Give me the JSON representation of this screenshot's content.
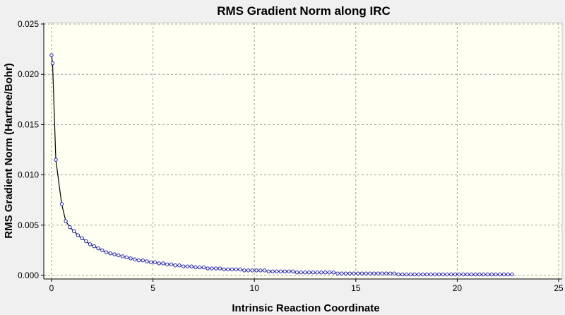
{
  "chart_data": {
    "type": "line",
    "title": "RMS Gradient Norm along IRC",
    "xlabel": "Intrinsic Reaction Coordinate",
    "ylabel": "RMS Gradient Norm (Hartree/Bohr)",
    "xlim": [
      0,
      25
    ],
    "ylim": [
      0,
      0.025
    ],
    "xticks": [
      0,
      5,
      10,
      15,
      20,
      25
    ],
    "xtick_labels": [
      "0",
      "5",
      "10",
      "15",
      "20",
      "25"
    ],
    "yticks": [
      0,
      0.005,
      0.01,
      0.015,
      0.02,
      0.025
    ],
    "ytick_labels": [
      "0.000",
      "0.005",
      "0.010",
      "0.015",
      "0.020",
      "0.025"
    ],
    "grid": true,
    "legend": false,
    "series": [
      {
        "line_color": "#000000",
        "marker_color": "#2020c0",
        "x": [
          0.0,
          0.05,
          0.21,
          0.5,
          0.7,
          0.9,
          1.1,
          1.3,
          1.5,
          1.7,
          1.9,
          2.1,
          2.3,
          2.5,
          2.7,
          2.9,
          3.1,
          3.3,
          3.5,
          3.7,
          3.9,
          4.1,
          4.3,
          4.5,
          4.7,
          4.9,
          5.1,
          5.3,
          5.5,
          5.7,
          5.9,
          6.1,
          6.3,
          6.5,
          6.7,
          6.9,
          7.1,
          7.3,
          7.5,
          7.7,
          7.9,
          8.1,
          8.3,
          8.5,
          8.7,
          8.9,
          9.1,
          9.3,
          9.5,
          9.7,
          9.9,
          10.1,
          10.3,
          10.5,
          10.7,
          10.9,
          11.1,
          11.3,
          11.5,
          11.7,
          11.9,
          12.1,
          12.3,
          12.5,
          12.7,
          12.9,
          13.1,
          13.3,
          13.5,
          13.7,
          13.9,
          14.1,
          14.3,
          14.5,
          14.7,
          14.9,
          15.1,
          15.3,
          15.5,
          15.7,
          15.9,
          16.1,
          16.3,
          16.5,
          16.7,
          16.9,
          17.1,
          17.3,
          17.5,
          17.7,
          17.9,
          18.1,
          18.3,
          18.5,
          18.7,
          18.9,
          19.1,
          19.3,
          19.5,
          19.7,
          19.9,
          20.1,
          20.3,
          20.5,
          20.7,
          20.9,
          21.1,
          21.3,
          21.5,
          21.7,
          21.9,
          22.1,
          22.3,
          22.5,
          22.7
        ],
        "y": [
          0.0219,
          0.0211,
          0.0115,
          0.0071,
          0.0054,
          0.0048,
          0.0044,
          0.004,
          0.0037,
          0.0034,
          0.0031,
          0.0029,
          0.0027,
          0.0025,
          0.0023,
          0.0022,
          0.0021,
          0.002,
          0.0019,
          0.0018,
          0.0017,
          0.0016,
          0.0015,
          0.0015,
          0.0014,
          0.0013,
          0.0013,
          0.0012,
          0.0012,
          0.0011,
          0.0011,
          0.001,
          0.001,
          0.0009,
          0.0009,
          0.0009,
          0.0008,
          0.0008,
          0.0008,
          0.0007,
          0.0007,
          0.0007,
          0.0007,
          0.0006,
          0.0006,
          0.0006,
          0.0006,
          0.0006,
          0.0005,
          0.0005,
          0.0005,
          0.0005,
          0.0005,
          0.0005,
          0.0004,
          0.0004,
          0.0004,
          0.0004,
          0.0004,
          0.0004,
          0.0004,
          0.0003,
          0.0003,
          0.0003,
          0.0003,
          0.0003,
          0.0003,
          0.0003,
          0.0003,
          0.0003,
          0.0003,
          0.0002,
          0.0002,
          0.0002,
          0.0002,
          0.0002,
          0.0002,
          0.0002,
          0.0002,
          0.0002,
          0.0002,
          0.0002,
          0.0002,
          0.0002,
          0.0002,
          0.0002,
          0.0001,
          0.0001,
          0.0001,
          0.0001,
          0.0001,
          0.0001,
          0.0001,
          0.0001,
          0.0001,
          0.0001,
          0.0001,
          0.0001,
          0.0001,
          0.0001,
          0.0001,
          0.0001,
          0.0001,
          0.0001,
          0.0001,
          0.0001,
          0.0001,
          0.0001,
          0.0001,
          0.0001,
          0.0001,
          0.0001,
          0.0001,
          0.0001,
          0.0001
        ]
      }
    ]
  },
  "colors": {
    "window_background": "#f0f0f0",
    "plot_background": "#fffff2",
    "grid": "#a0a0a0",
    "axis": "#000000"
  }
}
